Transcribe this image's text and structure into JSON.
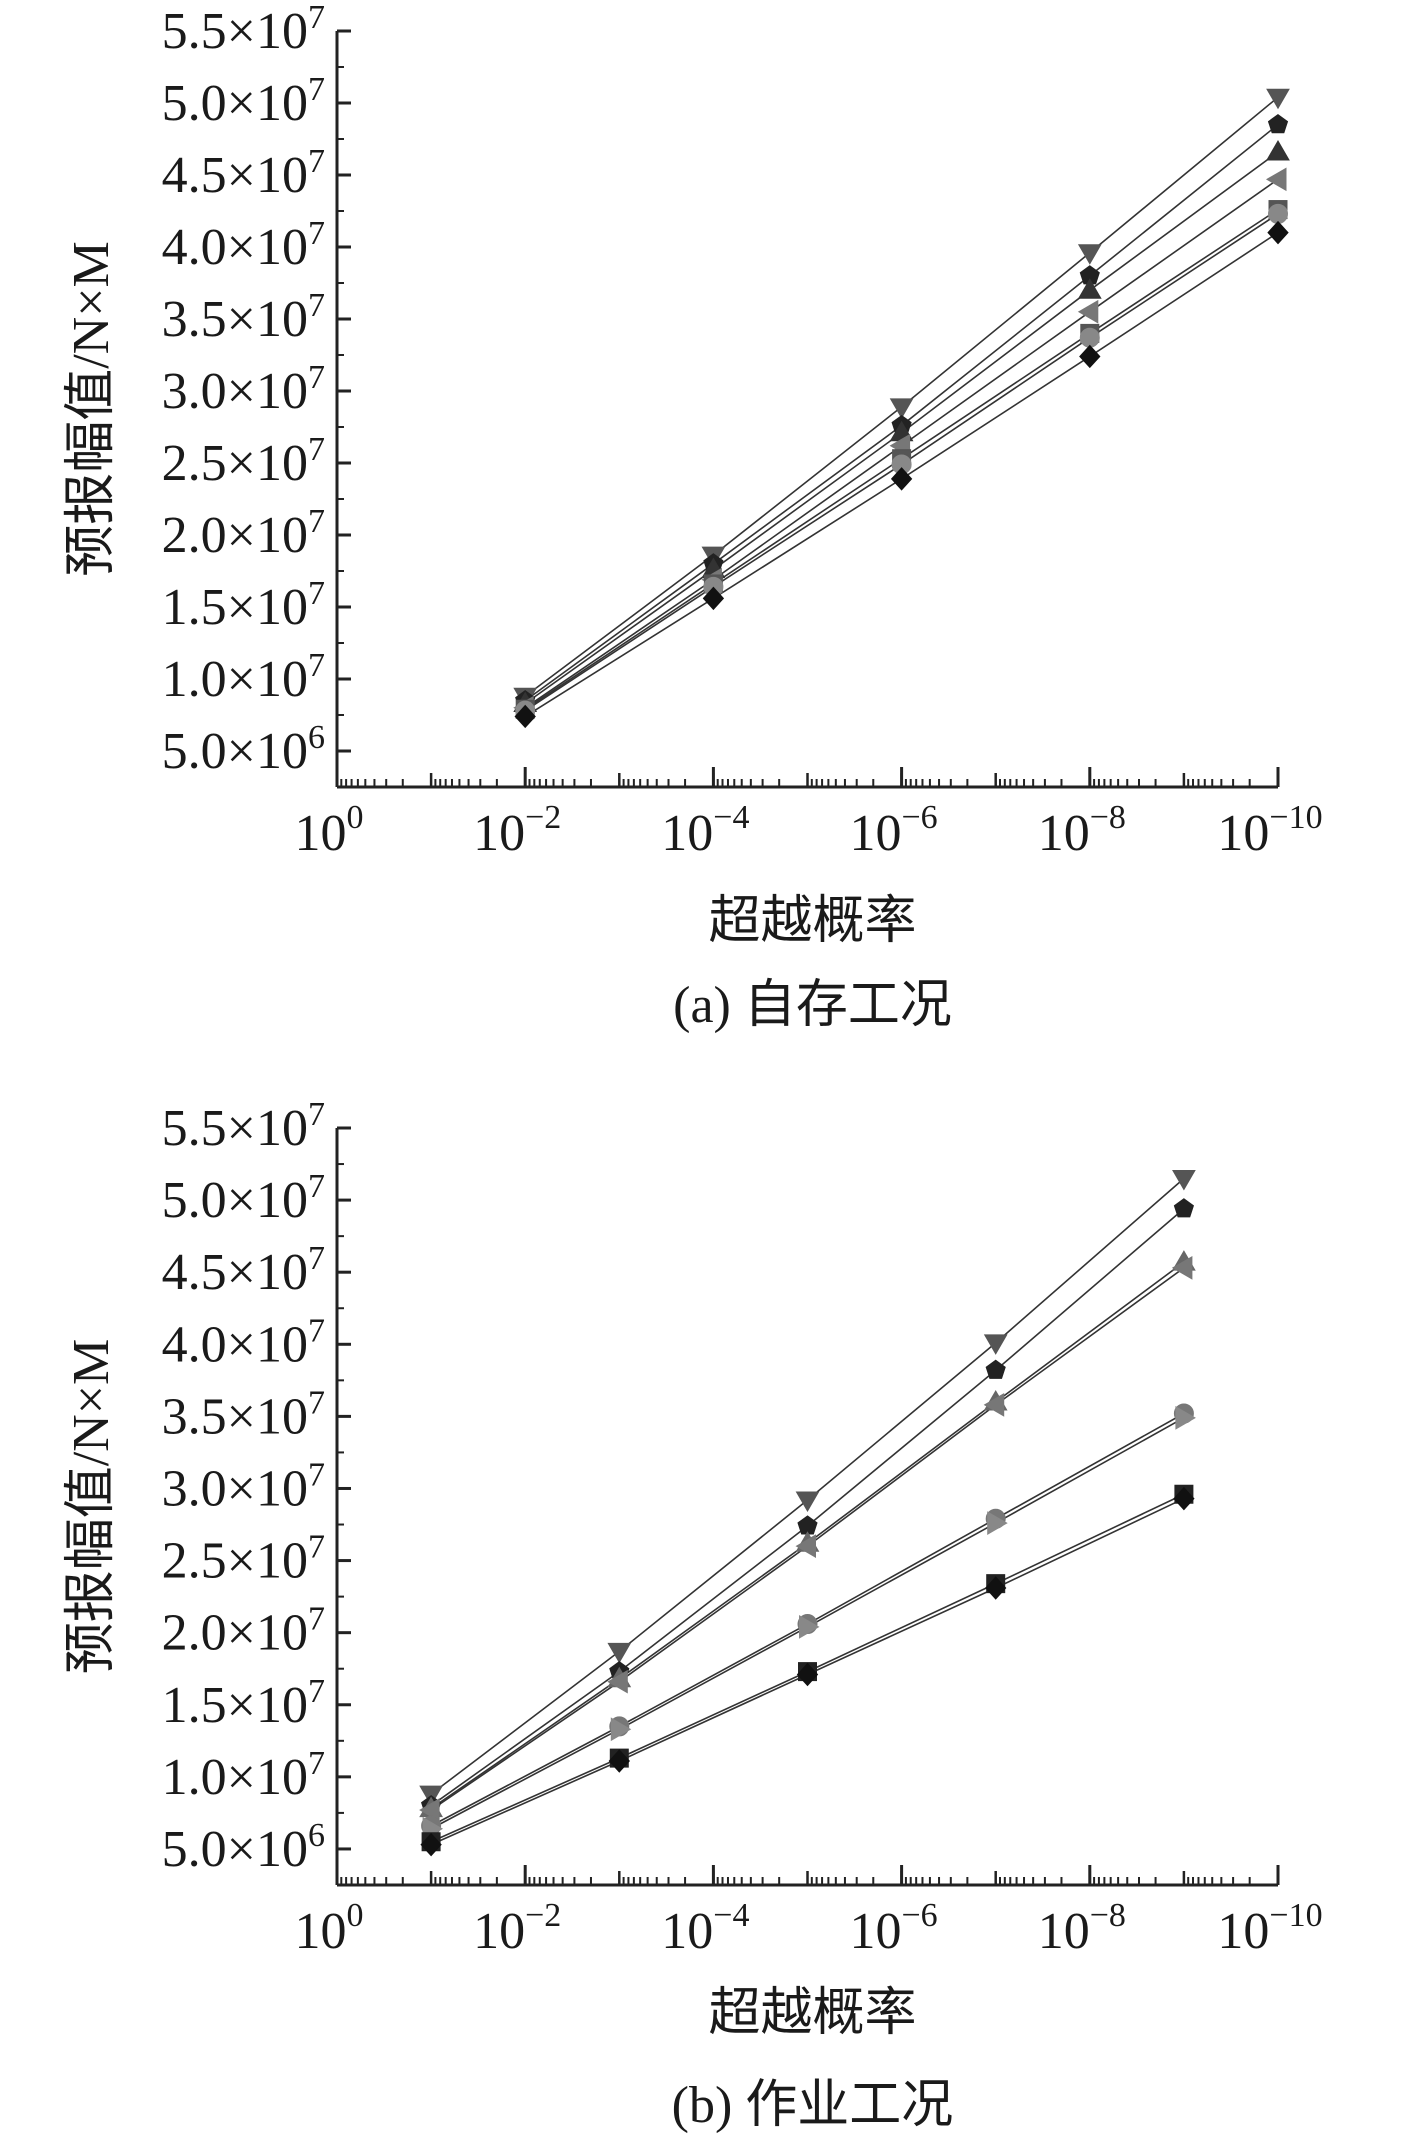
{
  "chart_data": [
    {
      "type": "line",
      "x_scale": "log",
      "x_axis_direction": "exceedance probability decreasing to the right",
      "xlim": [
        1,
        1e-10
      ],
      "ylim": [
        2500000,
        55000000
      ],
      "xlabel": "超越概率",
      "ylabel": "预报幅值/N×M",
      "caption": "(a) 自存工况",
      "x_ticks": [
        {
          "value": 1,
          "base": "10",
          "exp": "0"
        },
        {
          "value": 0.01,
          "base": "10",
          "exp": "−2"
        },
        {
          "value": 0.0001,
          "base": "10",
          "exp": "−4"
        },
        {
          "value": 1e-06,
          "base": "10",
          "exp": "−6"
        },
        {
          "value": 1e-08,
          "base": "10",
          "exp": "−8"
        },
        {
          "value": 1e-10,
          "base": "10",
          "exp": "−10"
        }
      ],
      "y_ticks": [
        {
          "value": 5000000,
          "mant": "5.0",
          "exp": "6"
        },
        {
          "value": 10000000,
          "mant": "1.0",
          "exp": "7"
        },
        {
          "value": 15000000,
          "mant": "1.5",
          "exp": "7"
        },
        {
          "value": 20000000,
          "mant": "2.0",
          "exp": "7"
        },
        {
          "value": 25000000,
          "mant": "2.5",
          "exp": "7"
        },
        {
          "value": 30000000,
          "mant": "3.0",
          "exp": "7"
        },
        {
          "value": 35000000,
          "mant": "3.5",
          "exp": "7"
        },
        {
          "value": 40000000,
          "mant": "4.0",
          "exp": "7"
        },
        {
          "value": 45000000,
          "mant": "4.5",
          "exp": "7"
        },
        {
          "value": 50000000,
          "mant": "5.0",
          "exp": "7"
        },
        {
          "value": 55000000,
          "mant": "5.5",
          "exp": "7"
        }
      ],
      "x": [
        0.01,
        0.0001,
        1e-06,
        1e-08,
        1e-10
      ],
      "series": [
        {
          "marker": "triangle-down",
          "color": "#555555",
          "values": [
            8800000,
            18600000,
            28900000,
            39600000,
            50400000
          ]
        },
        {
          "marker": "pentagon",
          "color": "#222222",
          "values": [
            8500000,
            18000000,
            27600000,
            38000000,
            48500000
          ]
        },
        {
          "marker": "triangle-up",
          "color": "#333333",
          "values": [
            8300000,
            17600000,
            27100000,
            37000000,
            46600000
          ]
        },
        {
          "marker": "triangle-left",
          "color": "#777777",
          "values": [
            8000000,
            16900000,
            26200000,
            35500000,
            44700000
          ]
        },
        {
          "marker": "square",
          "color": "#555555",
          "values": [
            7900000,
            16600000,
            25300000,
            34000000,
            42600000
          ]
        },
        {
          "marker": "circle",
          "color": "#888888",
          "values": [
            7800000,
            16400000,
            24900000,
            33700000,
            42300000
          ]
        },
        {
          "marker": "diamond",
          "color": "#111111",
          "values": [
            7400000,
            15600000,
            23900000,
            32400000,
            41000000
          ]
        }
      ]
    },
    {
      "type": "line",
      "x_scale": "log",
      "x_axis_direction": "exceedance probability decreasing to the right",
      "xlim": [
        1,
        1e-10
      ],
      "ylim": [
        2500000,
        55000000
      ],
      "xlabel": "超越概率",
      "ylabel": "预报幅值/N×M",
      "caption": "(b) 作业工况",
      "x_ticks": [
        {
          "value": 1,
          "base": "10",
          "exp": "0"
        },
        {
          "value": 0.01,
          "base": "10",
          "exp": "−2"
        },
        {
          "value": 0.0001,
          "base": "10",
          "exp": "−4"
        },
        {
          "value": 1e-06,
          "base": "10",
          "exp": "−6"
        },
        {
          "value": 1e-08,
          "base": "10",
          "exp": "−8"
        },
        {
          "value": 1e-10,
          "base": "10",
          "exp": "−10"
        }
      ],
      "y_ticks": [
        {
          "value": 5000000,
          "mant": "5.0",
          "exp": "6"
        },
        {
          "value": 10000000,
          "mant": "1.0",
          "exp": "7"
        },
        {
          "value": 15000000,
          "mant": "1.5",
          "exp": "7"
        },
        {
          "value": 20000000,
          "mant": "2.0",
          "exp": "7"
        },
        {
          "value": 25000000,
          "mant": "2.5",
          "exp": "7"
        },
        {
          "value": 30000000,
          "mant": "3.0",
          "exp": "7"
        },
        {
          "value": 35000000,
          "mant": "3.5",
          "exp": "7"
        },
        {
          "value": 40000000,
          "mant": "4.0",
          "exp": "7"
        },
        {
          "value": 45000000,
          "mant": "4.5",
          "exp": "7"
        },
        {
          "value": 50000000,
          "mant": "5.0",
          "exp": "7"
        },
        {
          "value": 55000000,
          "mant": "5.5",
          "exp": "7"
        }
      ],
      "x": [
        0.1,
        0.001,
        1e-05,
        1e-07,
        1e-09
      ],
      "series": [
        {
          "marker": "triangle-down",
          "color": "#555555",
          "values": [
            8800000,
            18700000,
            29200000,
            40100000,
            51500000
          ]
        },
        {
          "marker": "pentagon",
          "color": "#222222",
          "values": [
            8000000,
            17300000,
            27400000,
            38200000,
            49400000
          ]
        },
        {
          "marker": "triangle-up",
          "color": "#666666",
          "values": [
            7800000,
            16800000,
            26200000,
            36000000,
            45700000
          ]
        },
        {
          "marker": "triangle-left",
          "color": "#777777",
          "values": [
            7700000,
            16600000,
            26000000,
            35800000,
            45300000
          ]
        },
        {
          "marker": "circle",
          "color": "#777777",
          "values": [
            6600000,
            13500000,
            20600000,
            27900000,
            35200000
          ]
        },
        {
          "marker": "triangle-right",
          "color": "#888888",
          "values": [
            6400000,
            13300000,
            20400000,
            27600000,
            34900000
          ]
        },
        {
          "marker": "square",
          "color": "#222222",
          "values": [
            5500000,
            11300000,
            17300000,
            23400000,
            29600000
          ]
        },
        {
          "marker": "diamond",
          "color": "#111111",
          "values": [
            5300000,
            11100000,
            17100000,
            23100000,
            29300000
          ]
        }
      ]
    }
  ]
}
